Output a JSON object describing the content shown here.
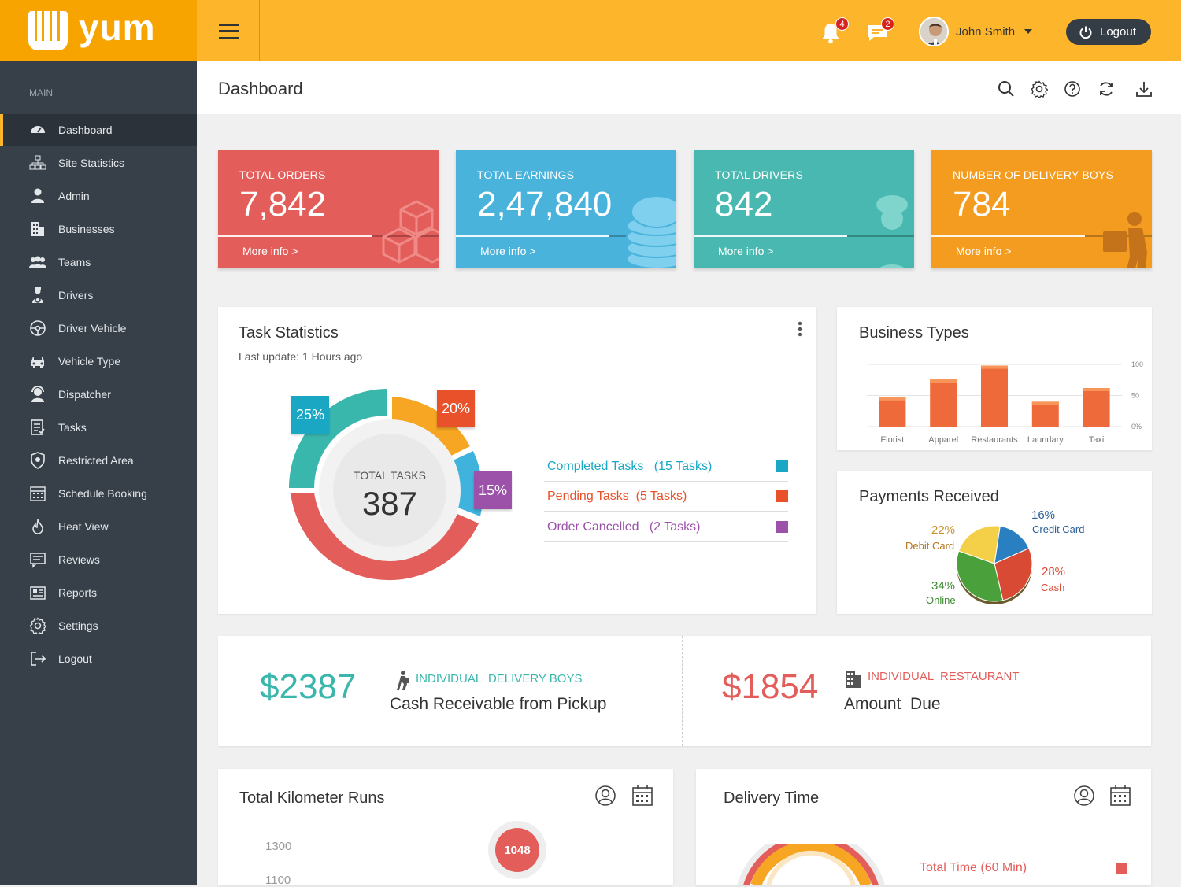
{
  "app": {
    "logo_text": "yum"
  },
  "topbar": {
    "notifications_count": "4",
    "messages_count": "2",
    "user_name": "John Smith",
    "logout_label": "Logout"
  },
  "sidebar": {
    "section_label": "MAIN",
    "items": [
      {
        "label": "Dashboard",
        "icon": "dashboard-icon"
      },
      {
        "label": "Site Statistics",
        "icon": "sitemap-icon"
      },
      {
        "label": "Admin",
        "icon": "user-icon"
      },
      {
        "label": "Businesses",
        "icon": "building-icon"
      },
      {
        "label": "Teams",
        "icon": "users-icon"
      },
      {
        "label": "Drivers",
        "icon": "driver-icon"
      },
      {
        "label": "Driver Vehicle",
        "icon": "steering-wheel-icon"
      },
      {
        "label": "Vehicle Type",
        "icon": "car-icon"
      },
      {
        "label": "Dispatcher",
        "icon": "dispatcher-icon"
      },
      {
        "label": "Tasks",
        "icon": "tasks-icon"
      },
      {
        "label": "Restricted Area",
        "icon": "shield-icon"
      },
      {
        "label": "Schedule Booking",
        "icon": "calendar-icon"
      },
      {
        "label": "Heat View",
        "icon": "flame-icon"
      },
      {
        "label": "Reviews",
        "icon": "comment-icon"
      },
      {
        "label": "Reports",
        "icon": "report-icon"
      },
      {
        "label": "Settings",
        "icon": "gear-icon"
      },
      {
        "label": "Logout",
        "icon": "logout-icon"
      }
    ]
  },
  "page": {
    "title": "Dashboard"
  },
  "stat_cards": [
    {
      "label": "TOTAL ORDERS",
      "value": "7,842",
      "link": "More info >",
      "color": "#e35d5b"
    },
    {
      "label": "TOTAL EARNINGS",
      "value": "2,47,840",
      "link": "More info >",
      "color": "#4ab3dc"
    },
    {
      "label": "TOTAL DRIVERS",
      "value": "842",
      "link": "More info >",
      "color": "#48b8b0"
    },
    {
      "label": "NUMBER OF DELIVERY BOYS",
      "value": "784",
      "link": "More info >",
      "color": "#f39c1f"
    }
  ],
  "task_stats": {
    "title": "Task Statistics",
    "subtitle": "Last update: 1 Hours ago",
    "center_label": "TOTAL TASKS",
    "center_value": "387",
    "badges": [
      "25%",
      "20%",
      "15%"
    ],
    "legend": [
      {
        "label": "Completed Tasks",
        "count": "(15 Tasks)",
        "color": "#1aa7c4"
      },
      {
        "label": "Pending Tasks",
        "count": "(5 Tasks)",
        "color": "#e8512a"
      },
      {
        "label": "Order Cancelled",
        "count": "(2 Tasks)",
        "color": "#9b52a8"
      }
    ]
  },
  "business_types": {
    "title": "Business Types",
    "chart_data": {
      "type": "bar",
      "categories": [
        "Florist",
        "Apparel",
        "Restaurants",
        "Laundary",
        "Taxi"
      ],
      "values": [
        47,
        76,
        98,
        40,
        62
      ],
      "ylim": [
        0,
        100
      ],
      "yticks": [
        "100",
        "50",
        "0%"
      ]
    }
  },
  "payments": {
    "title": "Payments Received",
    "chart_data": {
      "type": "pie",
      "slices": [
        {
          "label": "Credit Card",
          "pct": "16%",
          "value": 16,
          "color": "#2a7fc1"
        },
        {
          "label": "Cash",
          "pct": "28%",
          "value": 28,
          "color": "#d84a33"
        },
        {
          "label": "Online",
          "pct": "34%",
          "value": 34,
          "color": "#4aa13c"
        },
        {
          "label": "Debit Card",
          "pct": "22%",
          "value": 22,
          "color": "#f4cf48"
        }
      ]
    }
  },
  "cash_panel": {
    "left_amount": "$2387",
    "left_tag": "INDIVIDUAL  DELIVERY BOYS",
    "left_desc": "Cash Receivable from Pickup",
    "right_amount": "$1854",
    "right_tag": "INDIVIDUAL  RESTAURANT",
    "right_desc": "Amount  Due"
  },
  "km_panel": {
    "title": "Total Kilometer Runs",
    "ticks": [
      "1300",
      "1100"
    ],
    "bubble": "1048"
  },
  "delivery_panel": {
    "title": "Delivery Time",
    "legend_label": "Total Time (60 Min)"
  }
}
